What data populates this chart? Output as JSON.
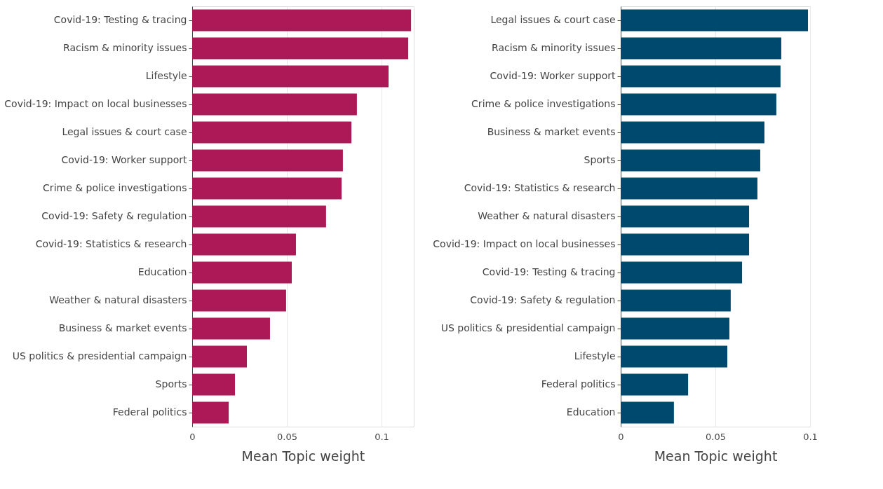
{
  "chart_data": [
    {
      "type": "bar",
      "orientation": "horizontal",
      "xlabel": "Mean Topic weight",
      "grid": "x",
      "categories": [
        "Covid-19: Testing & tracing",
        "Racism & minority issues",
        "Lifestyle",
        "Covid-19: Impact on local businesses",
        "Legal issues & court case",
        "Covid-19: Worker support",
        "Crime & police investigations",
        "Covid-19: Safety & regulation",
        "Covid-19: Statistics & research",
        "Education",
        "Weather & natural disasters",
        "Business & market events",
        "US politics & presidential campaign",
        "Sports",
        "Federal politics"
      ],
      "series": [
        {
          "color": "#ad1857",
          "values": [
            0.1156,
            0.1141,
            0.1037,
            0.087,
            0.0841,
            0.0796,
            0.0789,
            0.0707,
            0.0548,
            0.0526,
            0.0496,
            0.0411,
            0.0289,
            0.0226,
            0.0193
          ]
        }
      ],
      "xlim": [
        0,
        0.117
      ],
      "xticks": [
        0,
        0.05,
        {
          "value": 0.1,
          "label": "0.1"
        }
      ]
    },
    {
      "type": "bar",
      "orientation": "horizontal",
      "xlabel": "Mean Topic weight",
      "grid": "x",
      "categories": [
        "Legal issues & court case",
        "Racism & minority issues",
        "Covid-19: Worker support",
        "Crime & police investigations",
        "Business & market events",
        "Sports",
        "Covid-19: Statistics & research",
        "Weather & natural disasters",
        "Covid-19: Impact on local businesses",
        "Covid-19: Testing & tracing",
        "Covid-19: Safety & regulation",
        "US politics & presidential campaign",
        "Lifestyle",
        "Federal politics",
        "Education"
      ],
      "series": [
        {
          "color": "#00496e",
          "values": [
            0.0989,
            0.0848,
            0.0844,
            0.0822,
            0.0759,
            0.0737,
            0.0722,
            0.0678,
            0.0678,
            0.0641,
            0.0581,
            0.0574,
            0.0563,
            0.0356,
            0.0281
          ]
        }
      ],
      "xlim": [
        0,
        0.1
      ],
      "xticks": [
        0,
        0.05,
        {
          "value": 0.1,
          "label": "0.1"
        }
      ]
    }
  ]
}
